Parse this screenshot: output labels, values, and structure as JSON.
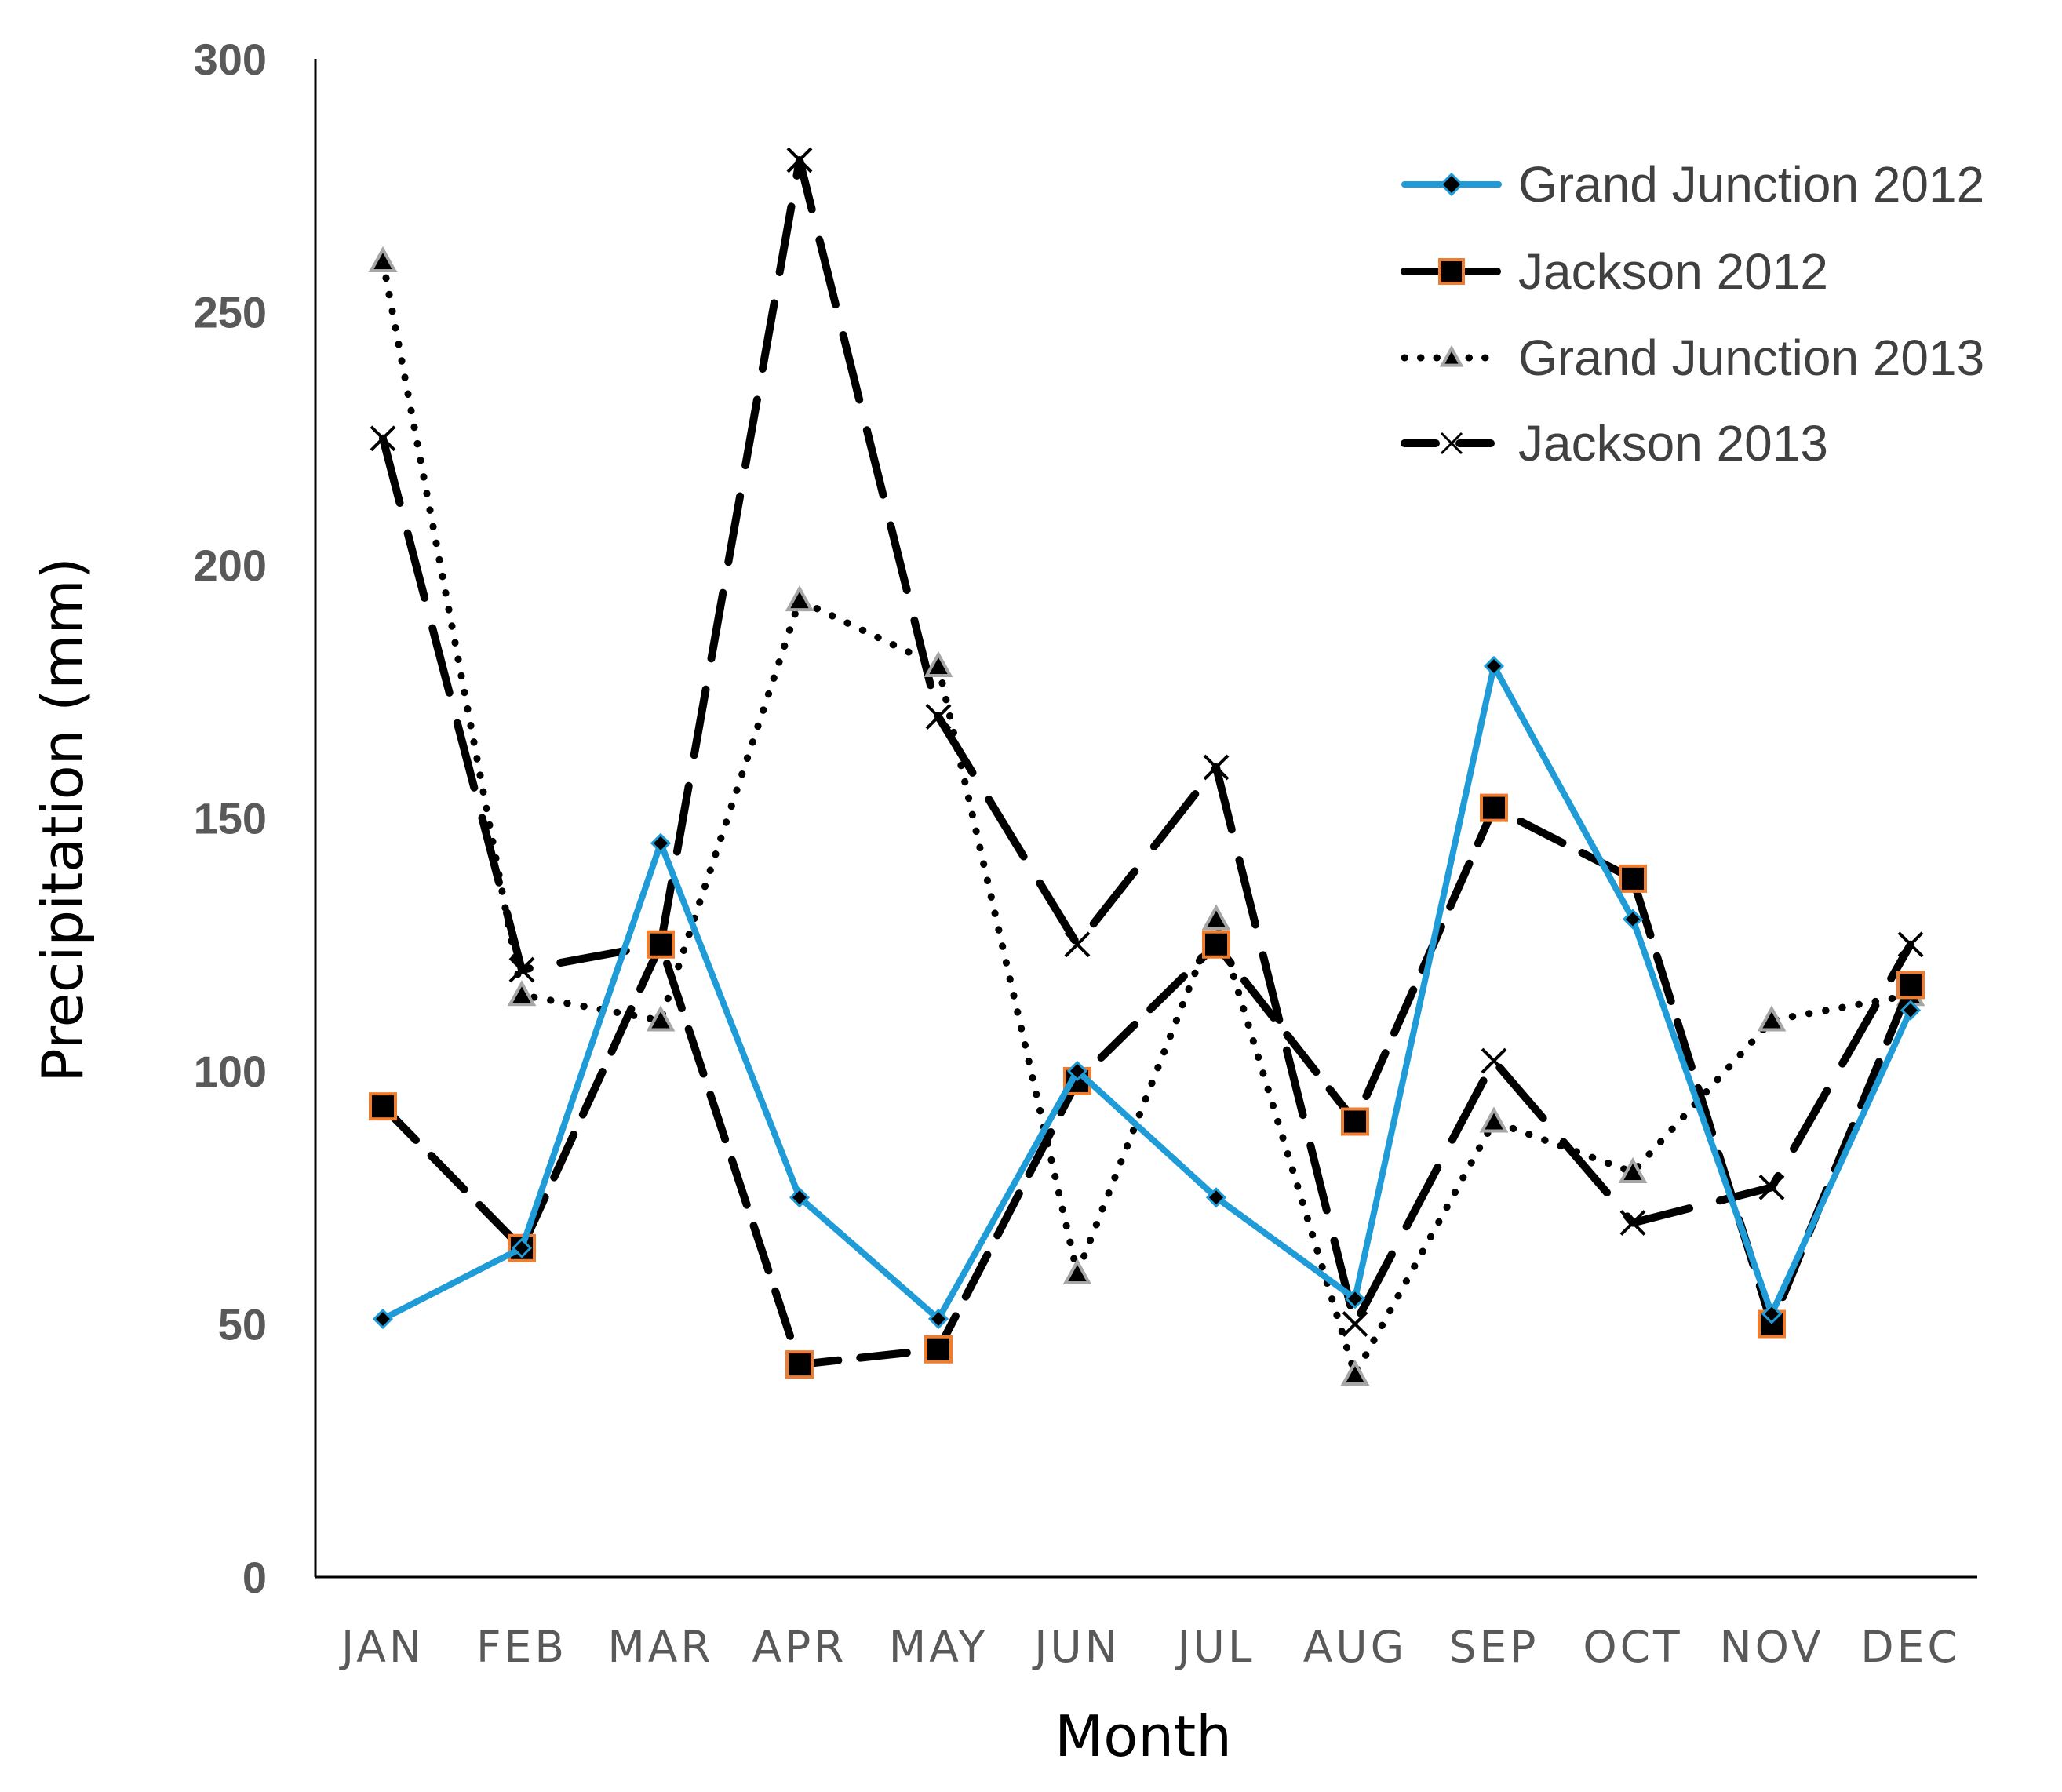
{
  "chart_data": {
    "type": "line",
    "title": "",
    "xlabel": "Month",
    "ylabel": "Precipitation (mm)",
    "ylim": [
      0,
      300
    ],
    "yticks": [
      0,
      50,
      100,
      150,
      200,
      250,
      300
    ],
    "grid": false,
    "legend_position": "top-right",
    "categories": [
      "JAN",
      "FEB",
      "MAR",
      "APR",
      "MAY",
      "JUN",
      "JUL",
      "AUG",
      "SEP",
      "OCT",
      "NOV",
      "DEC"
    ],
    "series": [
      {
        "name": "Grand Junction 2012",
        "color": "#1F9BD7",
        "line_style": "solid",
        "marker": "diamond",
        "values": [
          51,
          65,
          145,
          75,
          51,
          100,
          75,
          55,
          180,
          130,
          52,
          112
        ]
      },
      {
        "name": "Jackson 2012",
        "color": "#000000",
        "marker_edge_color": "#ED7D31",
        "line_style": "dashed",
        "marker": "square",
        "values": [
          93,
          65,
          125,
          42,
          45,
          98,
          125,
          90,
          152,
          138,
          50,
          117
        ]
      },
      {
        "name": "Grand Junction 2013",
        "color": "#000000",
        "marker_edge_color": "#A6A6A6",
        "line_style": "dotted",
        "marker": "triangle",
        "values": [
          260,
          115,
          110,
          193,
          180,
          60,
          130,
          40,
          90,
          80,
          110,
          115
        ]
      },
      {
        "name": "Jackson 2013",
        "color": "#000000",
        "line_style": "long-dash",
        "marker": "x",
        "values": [
          225,
          120,
          125,
          280,
          170,
          125,
          160,
          50,
          102,
          70,
          77,
          125
        ]
      }
    ]
  }
}
